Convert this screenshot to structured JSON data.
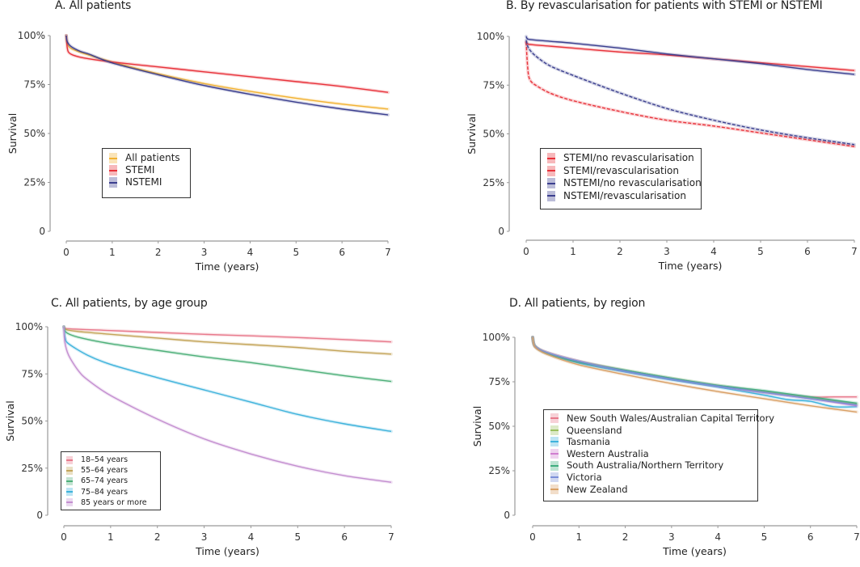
{
  "chart_data": [
    {
      "id": "A",
      "type": "line",
      "title": "A. All patients",
      "xlabel": "Time (years)",
      "ylabel": "Survival",
      "xlim": [
        0,
        7
      ],
      "ylim": [
        0,
        100
      ],
      "xticks": [
        "0",
        "1",
        "2",
        "3",
        "4",
        "5",
        "6",
        "7"
      ],
      "yticks": [
        "0",
        "25%",
        "50%",
        "75%",
        "100%"
      ],
      "legend_position": "center-left",
      "series": [
        {
          "name": "All patients",
          "color": "#f2b233",
          "dashed": false,
          "x": [
            0,
            0.02,
            0.1,
            0.3,
            0.5,
            1,
            2,
            3,
            4,
            5,
            6,
            7
          ],
          "y": [
            100,
            96,
            93.5,
            91.5,
            90,
            86.5,
            80.5,
            75.5,
            71.5,
            68,
            65,
            62.5
          ]
        },
        {
          "name": "STEMI",
          "color": "#e8333b",
          "dashed": false,
          "x": [
            0,
            0.02,
            0.05,
            0.15,
            0.4,
            1,
            2,
            3,
            4,
            5,
            6,
            7
          ],
          "y": [
            100,
            94,
            91.5,
            90,
            88.5,
            86.5,
            84,
            81.5,
            79,
            76.5,
            74,
            71
          ]
        },
        {
          "name": "NSTEMI",
          "color": "#3b3f8f",
          "dashed": false,
          "x": [
            0,
            0.02,
            0.1,
            0.3,
            0.5,
            1,
            2,
            3,
            4,
            5,
            6,
            7
          ],
          "y": [
            100,
            97,
            94.5,
            92,
            90.5,
            86,
            80,
            74.5,
            70,
            66,
            62.5,
            59.5
          ]
        }
      ]
    },
    {
      "id": "B",
      "type": "line",
      "title": "B. By revascularisation for patients with STEMI or NSTEMI",
      "xlabel": "Time (years)",
      "ylabel": "Survival",
      "xlim": [
        0,
        7
      ],
      "ylim": [
        0,
        100
      ],
      "xticks": [
        "0",
        "1",
        "2",
        "3",
        "4",
        "5",
        "6",
        "7"
      ],
      "yticks": [
        "0",
        "25%",
        "50%",
        "75%",
        "100%"
      ],
      "legend_position": "center-left",
      "series": [
        {
          "name": "STEMI/no revascularisation",
          "color": "#e8333b",
          "dashed": true,
          "x": [
            0,
            0.02,
            0.05,
            0.1,
            0.2,
            0.5,
            1,
            2,
            3,
            4,
            5,
            6,
            7
          ],
          "y": [
            97,
            88,
            80,
            77,
            75,
            71,
            67,
            61.5,
            57,
            54,
            50.5,
            47,
            43.5
          ]
        },
        {
          "name": "STEMI/revascularisation",
          "color": "#e8333b",
          "dashed": false,
          "x": [
            0,
            0.05,
            0.5,
            1,
            2,
            3,
            4,
            5,
            6,
            7
          ],
          "y": [
            97,
            96,
            95,
            94,
            92,
            90.5,
            88.5,
            86.5,
            84.5,
            82.5
          ]
        },
        {
          "name": "NSTEMI/no revascularisation",
          "color": "#3b3f8f",
          "dashed": true,
          "x": [
            0,
            0.05,
            0.2,
            0.5,
            1,
            2,
            3,
            4,
            5,
            6,
            7
          ],
          "y": [
            98,
            94,
            90,
            85,
            80,
            71,
            63,
            57,
            52,
            48,
            44.5
          ]
        },
        {
          "name": "NSTEMI/revascularisation",
          "color": "#3b3f8f",
          "dashed": false,
          "x": [
            0,
            0.05,
            0.5,
            1,
            2,
            3,
            4,
            5,
            6,
            7
          ],
          "y": [
            100,
            98.5,
            97.5,
            96.5,
            94,
            91,
            88.5,
            86,
            83,
            80.5
          ]
        }
      ]
    },
    {
      "id": "C",
      "type": "line",
      "title": "C. All patients, by age group",
      "xlabel": "Time (years)",
      "ylabel": "Survival",
      "xlim": [
        0,
        7
      ],
      "ylim": [
        0,
        100
      ],
      "xticks": [
        "0",
        "1",
        "2",
        "3",
        "4",
        "5",
        "6",
        "7"
      ],
      "yticks": [
        "0",
        "25%",
        "50%",
        "75%",
        "100%"
      ],
      "legend_position": "bottom-left",
      "series": [
        {
          "name": "18–54 years",
          "color": "#e87a8c",
          "dashed": false,
          "x": [
            0,
            0.05,
            1,
            2,
            3,
            4,
            5,
            6,
            7
          ],
          "y": [
            100,
            99,
            98,
            97,
            96,
            95.2,
            94.3,
            93.2,
            92
          ]
        },
        {
          "name": "55–64 years",
          "color": "#c4a55a",
          "dashed": false,
          "x": [
            0,
            0.05,
            0.3,
            1,
            2,
            3,
            4,
            5,
            6,
            7
          ],
          "y": [
            100,
            98.5,
            97.5,
            96,
            94,
            92,
            90.5,
            89,
            87,
            85.5
          ]
        },
        {
          "name": "65–74 years",
          "color": "#4fb07a",
          "dashed": false,
          "x": [
            0,
            0.05,
            0.3,
            1,
            2,
            3,
            4,
            5,
            6,
            7
          ],
          "y": [
            100,
            97,
            94.5,
            91,
            87.5,
            84,
            81,
            77.5,
            74,
            71
          ]
        },
        {
          "name": "75–84 years",
          "color": "#3fb3dc",
          "dashed": false,
          "x": [
            0,
            0.03,
            0.1,
            0.5,
            1,
            2,
            3,
            4,
            5,
            6,
            7
          ],
          "y": [
            100,
            94,
            91,
            85,
            80,
            73,
            66.5,
            60,
            53.5,
            48.5,
            44.5
          ]
        },
        {
          "name": "85 years or more",
          "color": "#c48fd0",
          "dashed": false,
          "x": [
            0,
            0.02,
            0.1,
            0.3,
            0.5,
            1,
            2,
            3,
            4,
            5,
            6,
            7
          ],
          "y": [
            100,
            92,
            85,
            77,
            72,
            63.5,
            51,
            40.5,
            32.5,
            26,
            21,
            17.5
          ]
        }
      ]
    },
    {
      "id": "D",
      "type": "line",
      "title": "D. All patients, by region",
      "xlabel": "Time (years)",
      "ylabel": "Survival",
      "xlim": [
        0,
        7
      ],
      "ylim": [
        0,
        100
      ],
      "xticks": [
        "0",
        "1",
        "2",
        "3",
        "4",
        "5",
        "6",
        "7"
      ],
      "yticks": [
        "0",
        "25%",
        "50%",
        "75%",
        "100%"
      ],
      "legend_position": "center-left",
      "series": [
        {
          "name": "New South Wales/Australian Capital Territory",
          "color": "#e87a8c",
          "dashed": false,
          "x": [
            0,
            0.05,
            0.3,
            1,
            2,
            3,
            4,
            5,
            6,
            6.5,
            7
          ],
          "y": [
            100,
            95,
            91.5,
            86.5,
            81,
            76.5,
            72.5,
            69,
            66.5,
            66.5,
            66.5
          ]
        },
        {
          "name": "Queensland",
          "color": "#9bbf5f",
          "dashed": false,
          "x": [
            0,
            0.05,
            0.3,
            1,
            2,
            3,
            4,
            5,
            6,
            7
          ],
          "y": [
            100,
            95,
            91.5,
            86.5,
            81.5,
            77,
            73,
            69.5,
            66,
            62.5
          ]
        },
        {
          "name": "Tasmania",
          "color": "#3fb3dc",
          "dashed": false,
          "x": [
            0,
            0.05,
            0.3,
            1,
            2,
            3,
            4,
            5,
            5.5,
            6,
            6.5,
            7
          ],
          "y": [
            100,
            95,
            91,
            85.5,
            80.5,
            76,
            72,
            67.5,
            65,
            64,
            61,
            61
          ]
        },
        {
          "name": "Western Australia",
          "color": "#d07fd0",
          "dashed": false,
          "x": [
            0,
            0.05,
            0.3,
            1,
            2,
            3,
            4,
            5,
            6,
            7
          ],
          "y": [
            100,
            95,
            91.5,
            86.5,
            81,
            76.5,
            72.5,
            69,
            65.5,
            61.5
          ]
        },
        {
          "name": "South Australia/Northern Territory",
          "color": "#3fae7f",
          "dashed": false,
          "x": [
            0,
            0.05,
            0.3,
            1,
            2,
            3,
            4,
            5,
            6,
            7
          ],
          "y": [
            100,
            95,
            91,
            86,
            81.5,
            77,
            73,
            70,
            66.5,
            63
          ]
        },
        {
          "name": "Victoria",
          "color": "#7b8fd8",
          "dashed": false,
          "x": [
            0,
            0.05,
            0.3,
            1,
            2,
            3,
            4,
            5,
            6,
            7
          ],
          "y": [
            100,
            95,
            91.5,
            86.5,
            81,
            76.5,
            72.5,
            69,
            65.5,
            62
          ]
        },
        {
          "name": "New Zealand",
          "color": "#d9a066",
          "dashed": false,
          "x": [
            0,
            0.05,
            0.3,
            1,
            2,
            3,
            4,
            5,
            6,
            7
          ],
          "y": [
            100,
            94.5,
            90.5,
            84.5,
            79,
            74,
            69.5,
            65.5,
            61.5,
            58
          ]
        }
      ]
    }
  ]
}
